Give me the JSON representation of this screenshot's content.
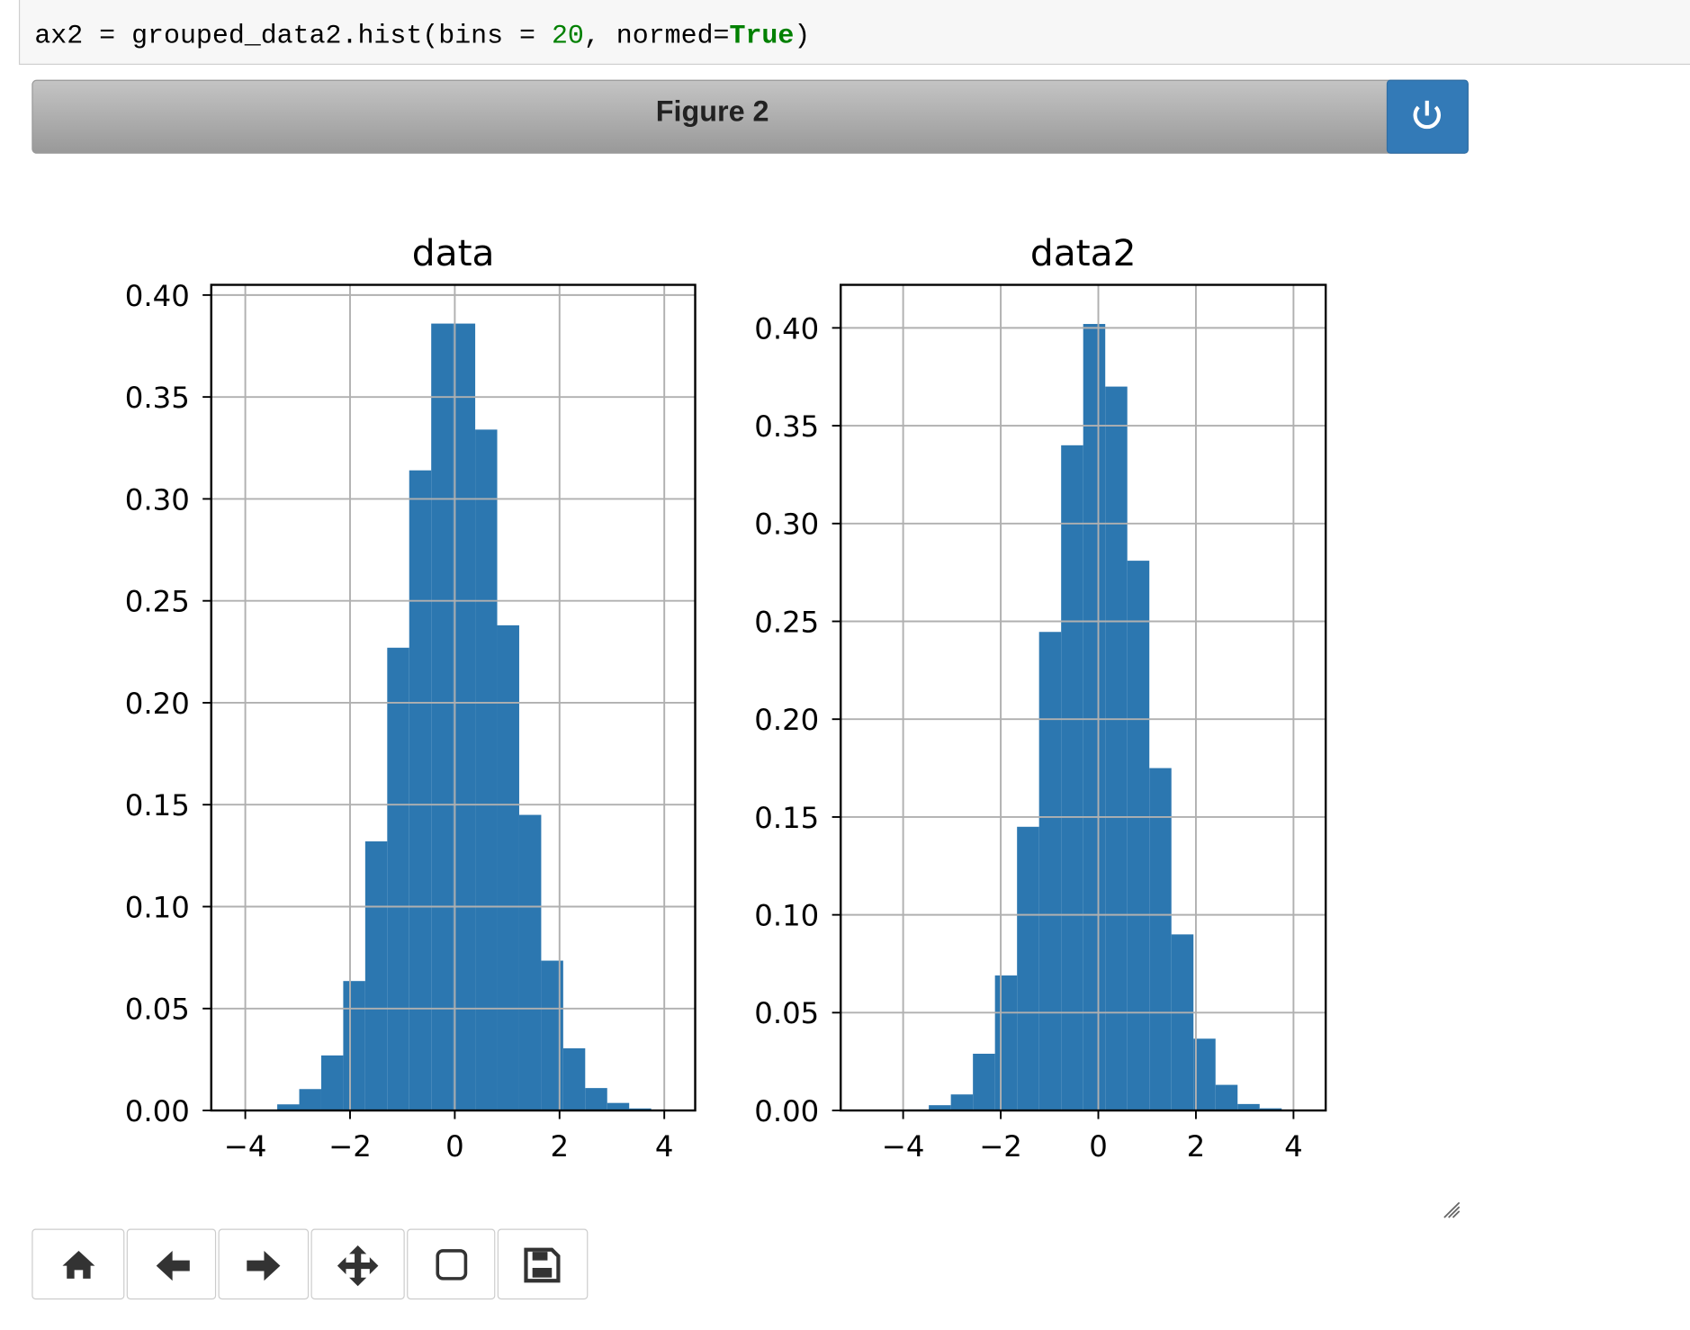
{
  "code": [
    "ax2 = grouped_data2.hist(bins = ",
    "20",
    ", normed=",
    "True",
    ")"
  ],
  "figure_title": "Figure 2",
  "chart_data": [
    {
      "type": "histogram",
      "title": "data",
      "color": "#2c77b0",
      "grid": true,
      "bins": [
        -4.23,
        -3.81,
        -3.39,
        -2.97,
        -2.55,
        -2.13,
        -1.71,
        -1.29,
        -0.87,
        -0.45,
        -0.03,
        0.39,
        0.81,
        1.23,
        1.65,
        2.07,
        2.49,
        2.91,
        3.33,
        3.75,
        4.17
      ],
      "values": [
        0.0002,
        0.0002,
        0.003,
        0.0105,
        0.027,
        0.0635,
        0.132,
        0.227,
        0.314,
        0.386,
        0.386,
        0.334,
        0.238,
        0.145,
        0.0735,
        0.0305,
        0.011,
        0.0037,
        0.001,
        0.0002
      ],
      "xlim": [
        -4.65,
        4.59
      ],
      "ylim": [
        0,
        0.405
      ],
      "xticks": [
        {
          "value": -4,
          "label": "−4"
        },
        {
          "value": -2,
          "label": "−2"
        },
        0,
        2,
        4
      ],
      "yticks": [
        {
          "value": 0,
          "label": "0.00"
        },
        {
          "value": 0.05,
          "label": "0.05"
        },
        {
          "value": 0.1,
          "label": "0.10"
        },
        {
          "value": 0.15,
          "label": "0.15"
        },
        {
          "value": 0.2,
          "label": "0.20"
        },
        {
          "value": 0.25,
          "label": "0.25"
        },
        {
          "value": 0.3,
          "label": "0.30"
        },
        {
          "value": 0.35,
          "label": "0.35"
        },
        {
          "value": 0.4,
          "label": "0.40"
        }
      ]
    },
    {
      "type": "histogram",
      "title": "data2",
      "color": "#2c77b0",
      "grid": true,
      "bins": [
        -4.83,
        -4.378,
        -3.926,
        -3.474,
        -3.022,
        -2.57,
        -2.118,
        -1.666,
        -1.214,
        -0.762,
        -0.31,
        0.142,
        0.594,
        1.046,
        1.498,
        1.95,
        2.402,
        2.854,
        3.306,
        3.758,
        4.21
      ],
      "values": [
        0.0002,
        0.0002,
        0.0005,
        0.0027,
        0.0082,
        0.029,
        0.069,
        0.145,
        0.2446,
        0.34,
        0.402,
        0.37,
        0.281,
        0.175,
        0.09,
        0.0367,
        0.0131,
        0.0033,
        0.0011,
        0.0003
      ],
      "xlim": [
        -5.28,
        4.66
      ],
      "ylim": [
        0,
        0.422
      ],
      "xticks": [
        {
          "value": -4,
          "label": "−4"
        },
        {
          "value": -2,
          "label": "−2"
        },
        0,
        2,
        4
      ],
      "yticks": [
        {
          "value": 0,
          "label": "0.00"
        },
        {
          "value": 0.05,
          "label": "0.05"
        },
        {
          "value": 0.1,
          "label": "0.10"
        },
        {
          "value": 0.15,
          "label": "0.15"
        },
        {
          "value": 0.2,
          "label": "0.20"
        },
        {
          "value": 0.25,
          "label": "0.25"
        },
        {
          "value": 0.3,
          "label": "0.30"
        },
        {
          "value": 0.35,
          "label": "0.35"
        },
        {
          "value": 0.4,
          "label": "0.40"
        }
      ]
    }
  ]
}
